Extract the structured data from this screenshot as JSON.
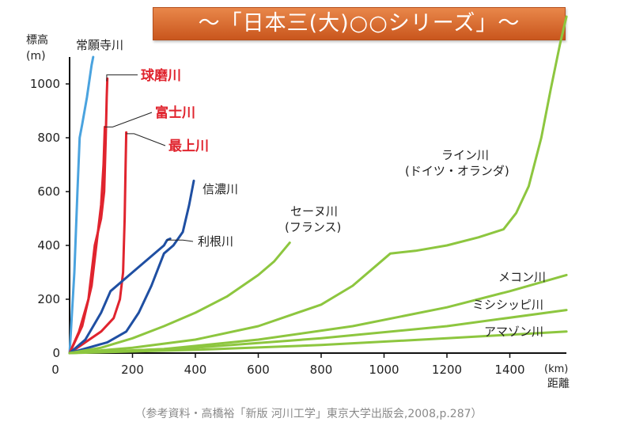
{
  "banner": "〜「日本三(大)○○シリーズ」〜",
  "source": "（参考資料・高橋裕「新版 河川工学」東京大学出版会,2008,p.287）",
  "chart_data": {
    "type": "line",
    "ylabel": [
      "標高",
      "(m)"
    ],
    "xlabel": [
      "(km)",
      "距離"
    ],
    "xlim": [
      0,
      1600
    ],
    "ylim": [
      0,
      1100
    ],
    "xticks": [
      0,
      200,
      400,
      600,
      800,
      1000,
      1200,
      1400
    ],
    "yticks": [
      0,
      200,
      400,
      600,
      800,
      1000
    ],
    "grid": false,
    "colors": {
      "japan_highlight": "#e0242e",
      "japan_other": "#1f4fa2",
      "jouganji": "#4aa3df",
      "foreign": "#8dc63f"
    },
    "series": [
      {
        "name": "常願寺川",
        "color": "#4aa3df",
        "x": [
          0,
          15,
          25,
          32,
          40,
          55,
          70,
          75
        ],
        "y": [
          0,
          300,
          600,
          800,
          850,
          950,
          1070,
          1100
        ]
      },
      {
        "name": "球磨川",
        "color": "#e0242e",
        "x": [
          0,
          30,
          60,
          80,
          100,
          110,
          115,
          118,
          120
        ],
        "y": [
          0,
          80,
          200,
          400,
          500,
          600,
          800,
          950,
          1020
        ]
      },
      {
        "name": "富士川",
        "color": "#e0242e",
        "x": [
          0,
          40,
          70,
          90,
          100,
          108,
          112
        ],
        "y": [
          0,
          100,
          250,
          450,
          550,
          700,
          840
        ]
      },
      {
        "name": "最上川",
        "color": "#e0242e",
        "x": [
          0,
          50,
          100,
          140,
          160,
          170,
          175,
          178,
          180
        ],
        "y": [
          0,
          40,
          80,
          130,
          200,
          300,
          500,
          700,
          820
        ]
      },
      {
        "name": "信濃川",
        "color": "#1f4fa2",
        "x": [
          0,
          60,
          120,
          180,
          220,
          260,
          300,
          330,
          360,
          380,
          395
        ],
        "y": [
          0,
          20,
          40,
          80,
          150,
          250,
          370,
          400,
          450,
          550,
          640
        ]
      },
      {
        "name": "利根川",
        "color": "#1f4fa2",
        "x": [
          0,
          50,
          100,
          130,
          200,
          300,
          310,
          320
        ],
        "y": [
          0,
          50,
          150,
          230,
          300,
          400,
          420,
          425
        ]
      },
      {
        "name": "セーヌ川",
        "color": "#8dc63f",
        "x": [
          0,
          100,
          200,
          300,
          400,
          500,
          600,
          650,
          700
        ],
        "y": [
          0,
          20,
          55,
          100,
          150,
          210,
          290,
          340,
          410
        ]
      },
      {
        "name": "ライン川",
        "color": "#8dc63f",
        "x": [
          0,
          200,
          400,
          600,
          800,
          900,
          980,
          1020,
          1100,
          1200,
          1300,
          1380,
          1420,
          1460,
          1500,
          1530,
          1560,
          1580
        ],
        "y": [
          0,
          20,
          50,
          100,
          180,
          250,
          330,
          370,
          380,
          400,
          430,
          460,
          520,
          620,
          800,
          980,
          1150,
          1250
        ]
      },
      {
        "name": "メコン川",
        "color": "#8dc63f",
        "x": [
          0,
          300,
          600,
          900,
          1200,
          1400,
          1580
        ],
        "y": [
          0,
          15,
          50,
          100,
          170,
          230,
          290
        ]
      },
      {
        "name": "ミシシッピ川",
        "color": "#8dc63f",
        "x": [
          0,
          400,
          800,
          1200,
          1580
        ],
        "y": [
          0,
          20,
          55,
          100,
          160
        ]
      },
      {
        "name": "アマゾン川",
        "color": "#8dc63f",
        "x": [
          0,
          400,
          800,
          1200,
          1580
        ],
        "y": [
          0,
          12,
          30,
          55,
          80
        ]
      }
    ],
    "labels": {
      "常願寺川": "常願寺川",
      "球磨川": "球磨川",
      "富士川": "富士川",
      "最上川": "最上川",
      "信濃川": "信濃川",
      "利根川": "利根川",
      "セーヌ川": [
        "セーヌ川",
        "(フランス)"
      ],
      "ライン川": [
        "ライン川",
        "(ドイツ・オランダ)"
      ],
      "メコン川": "メコン川",
      "ミシシッピ川": "ミシシッピ川",
      "アマゾン川": "アマゾン川"
    }
  }
}
